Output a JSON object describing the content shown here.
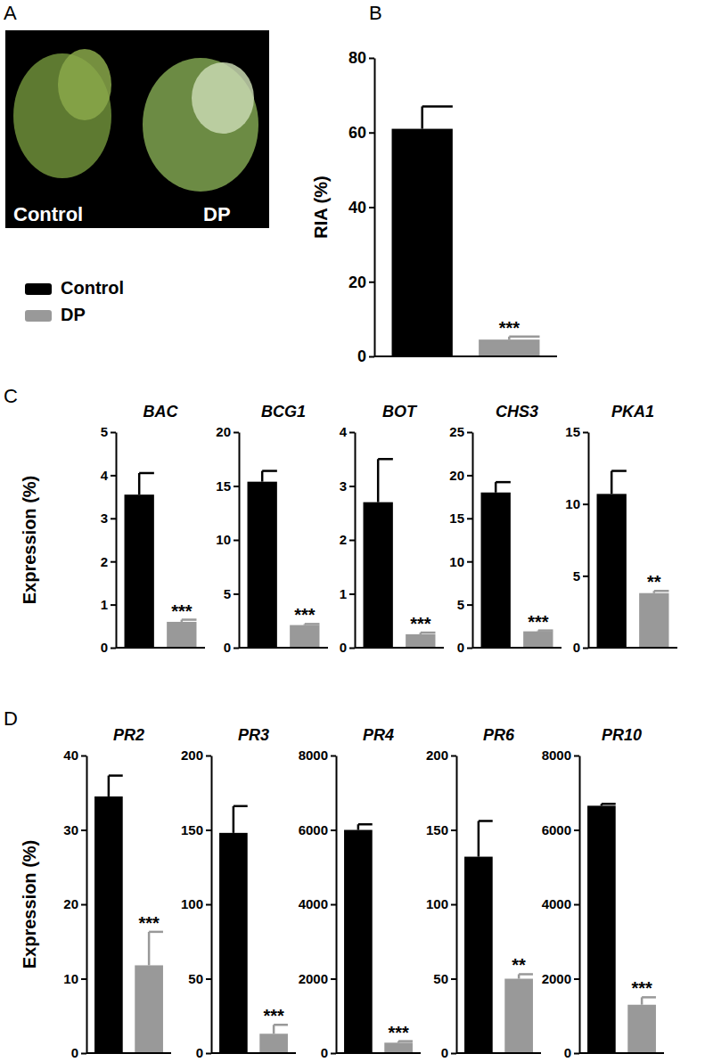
{
  "figure": {
    "panel_labels": [
      "A",
      "B",
      "C",
      "D"
    ],
    "photo_labels": [
      "Control",
      "DP"
    ],
    "legend": [
      {
        "name": "Control",
        "color": "#000000"
      },
      {
        "name": "DP",
        "color": "#999999"
      }
    ]
  },
  "chart_data": [
    {
      "type": "bar",
      "ylabel": "RIA (%)",
      "categories": [
        null,
        null
      ],
      "values": [
        61,
        4.5
      ],
      "errors": [
        6,
        0.8
      ],
      "colors": [
        "#000000",
        "#999999"
      ],
      "annotations": [
        null,
        "***"
      ],
      "ylim": [
        0,
        80
      ],
      "yticks": [
        0,
        20,
        40,
        60,
        80
      ]
    },
    {
      "type": "bar",
      "title": "BAC",
      "ylabel": "Expression (%)",
      "categories": [
        null,
        null
      ],
      "values": [
        3.55,
        0.6
      ],
      "errors": [
        0.5,
        0.05
      ],
      "colors": [
        "#000000",
        "#999999"
      ],
      "annotations": [
        null,
        "***"
      ],
      "ylim": [
        0,
        5
      ],
      "yticks": [
        0,
        1,
        2,
        3,
        4,
        5
      ]
    },
    {
      "type": "bar",
      "title": "BCG1",
      "categories": [
        null,
        null
      ],
      "values": [
        15.4,
        2.1
      ],
      "errors": [
        1.0,
        0.1
      ],
      "colors": [
        "#000000",
        "#999999"
      ],
      "annotations": [
        null,
        "***"
      ],
      "ylim": [
        0,
        20
      ],
      "yticks": [
        0,
        5,
        10,
        15,
        20
      ]
    },
    {
      "type": "bar",
      "title": "BOT",
      "categories": [
        null,
        null
      ],
      "values": [
        2.7,
        0.25
      ],
      "errors": [
        0.8,
        0.03
      ],
      "colors": [
        "#000000",
        "#999999"
      ],
      "annotations": [
        null,
        "***"
      ],
      "ylim": [
        0,
        4
      ],
      "yticks": [
        0,
        1,
        2,
        3,
        4
      ]
    },
    {
      "type": "bar",
      "title": "CHS3",
      "categories": [
        null,
        null
      ],
      "values": [
        18,
        1.9
      ],
      "errors": [
        1.2,
        0.1
      ],
      "colors": [
        "#000000",
        "#999999"
      ],
      "annotations": [
        null,
        "***"
      ],
      "ylim": [
        0,
        25
      ],
      "yticks": [
        0,
        5,
        10,
        15,
        20,
        25
      ]
    },
    {
      "type": "bar",
      "title": "PKA1",
      "categories": [
        null,
        null
      ],
      "values": [
        10.7,
        3.8
      ],
      "errors": [
        1.6,
        0.15
      ],
      "colors": [
        "#000000",
        "#999999"
      ],
      "annotations": [
        null,
        "**"
      ],
      "ylim": [
        0,
        15
      ],
      "yticks": [
        0,
        5,
        10,
        15
      ]
    },
    {
      "type": "bar",
      "title": "PR2",
      "ylabel": "Expression (%)",
      "categories": [
        null,
        null
      ],
      "values": [
        34.5,
        11.8
      ],
      "errors": [
        2.8,
        4.5
      ],
      "colors": [
        "#000000",
        "#999999"
      ],
      "annotations": [
        null,
        "***"
      ],
      "ylim": [
        0,
        40
      ],
      "yticks": [
        0,
        10,
        20,
        30,
        40
      ]
    },
    {
      "type": "bar",
      "title": "PR3",
      "categories": [
        null,
        null
      ],
      "values": [
        148,
        13
      ],
      "errors": [
        18,
        6
      ],
      "colors": [
        "#000000",
        "#999999"
      ],
      "annotations": [
        null,
        "***"
      ],
      "ylim": [
        0,
        200
      ],
      "yticks": [
        0,
        50,
        100,
        150,
        200
      ]
    },
    {
      "type": "bar",
      "title": "PR4",
      "categories": [
        null,
        null
      ],
      "values": [
        6000,
        280
      ],
      "errors": [
        150,
        40
      ],
      "colors": [
        "#000000",
        "#999999"
      ],
      "annotations": [
        null,
        "***"
      ],
      "ylim": [
        0,
        8000
      ],
      "yticks": [
        0,
        2000,
        4000,
        6000,
        8000
      ]
    },
    {
      "type": "bar",
      "title": "PR6",
      "categories": [
        null,
        null
      ],
      "values": [
        132,
        50
      ],
      "errors": [
        24,
        3
      ],
      "colors": [
        "#000000",
        "#999999"
      ],
      "annotations": [
        null,
        "**"
      ],
      "ylim": [
        0,
        200
      ],
      "yticks": [
        0,
        50,
        100,
        150,
        200
      ]
    },
    {
      "type": "bar",
      "title": "PR10",
      "categories": [
        null,
        null
      ],
      "values": [
        6650,
        1300
      ],
      "errors": [
        50,
        200
      ],
      "colors": [
        "#000000",
        "#999999"
      ],
      "annotations": [
        null,
        "***"
      ],
      "ylim": [
        0,
        8000
      ],
      "yticks": [
        0,
        2000,
        4000,
        6000,
        8000
      ]
    }
  ]
}
